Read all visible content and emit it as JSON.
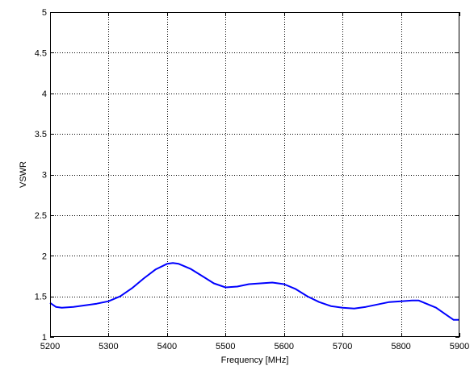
{
  "chart_data": {
    "type": "line",
    "title": "",
    "xlabel": "Frequency [MHz]",
    "ylabel": "VSWR",
    "xlim": [
      5200,
      5900
    ],
    "ylim": [
      1,
      5
    ],
    "xticks": [
      5200,
      5300,
      5400,
      5500,
      5600,
      5700,
      5800,
      5900
    ],
    "yticks": [
      1,
      1.5,
      2,
      2.5,
      3,
      3.5,
      4,
      4.5,
      5
    ],
    "ytick_labels": [
      "1",
      "1.5",
      "2",
      "2.5",
      "3",
      "3.5",
      "4",
      "4.5",
      "5"
    ],
    "grid": true,
    "series": [
      {
        "color": "#0000ff",
        "x": [
          5200,
          5210,
          5220,
          5240,
          5260,
          5280,
          5300,
          5320,
          5340,
          5360,
          5380,
          5400,
          5410,
          5420,
          5440,
          5460,
          5480,
          5500,
          5520,
          5540,
          5560,
          5580,
          5590,
          5600,
          5620,
          5640,
          5660,
          5680,
          5700,
          5720,
          5740,
          5760,
          5780,
          5800,
          5820,
          5830,
          5840,
          5860,
          5880,
          5890,
          5900
        ],
        "y": [
          1.42,
          1.37,
          1.36,
          1.37,
          1.39,
          1.41,
          1.44,
          1.5,
          1.6,
          1.72,
          1.83,
          1.9,
          1.91,
          1.9,
          1.84,
          1.75,
          1.66,
          1.61,
          1.62,
          1.65,
          1.66,
          1.67,
          1.66,
          1.65,
          1.59,
          1.5,
          1.43,
          1.38,
          1.36,
          1.35,
          1.37,
          1.4,
          1.43,
          1.44,
          1.45,
          1.45,
          1.42,
          1.36,
          1.26,
          1.21,
          1.21
        ]
      }
    ]
  }
}
